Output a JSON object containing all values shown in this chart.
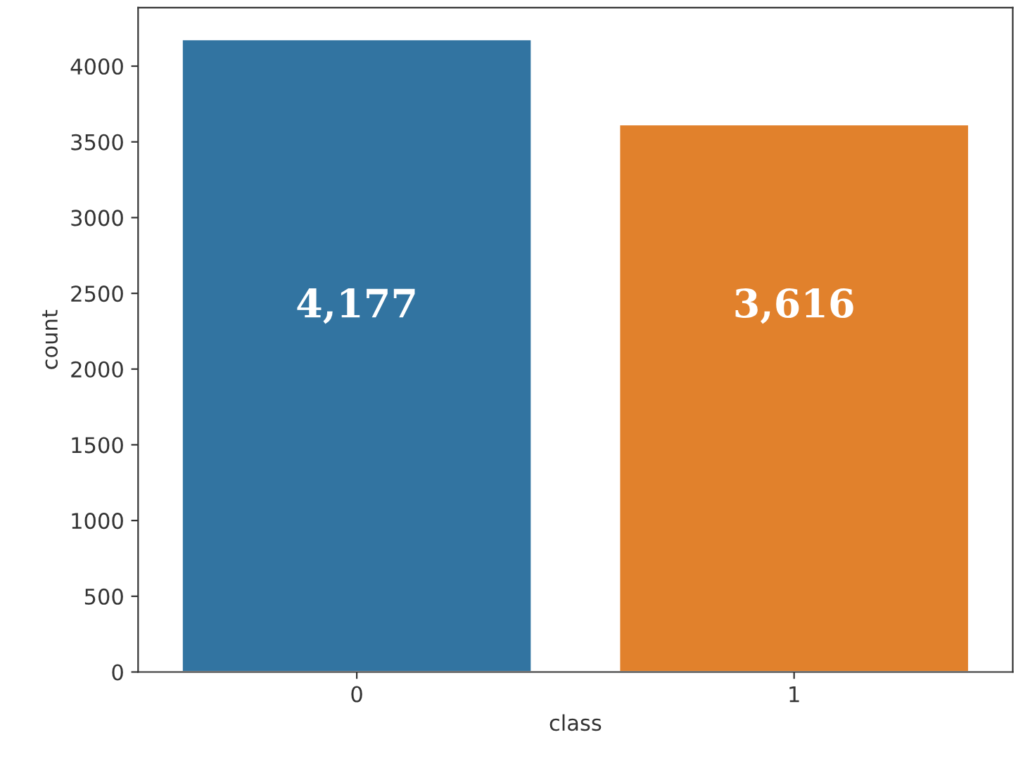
{
  "chart_data": {
    "type": "bar",
    "xlabel": "class",
    "ylabel": "count",
    "categories": [
      "0",
      "1"
    ],
    "values": [
      4177,
      3616
    ],
    "colors": [
      "#3274a1",
      "#e1812c"
    ],
    "value_labels": [
      "4,177",
      "3,616"
    ],
    "ylim": [
      0,
      4386
    ],
    "yticks": [
      0,
      500,
      1000,
      1500,
      2000,
      2500,
      3000,
      3500,
      4000
    ],
    "grid": false,
    "legend": false
  }
}
